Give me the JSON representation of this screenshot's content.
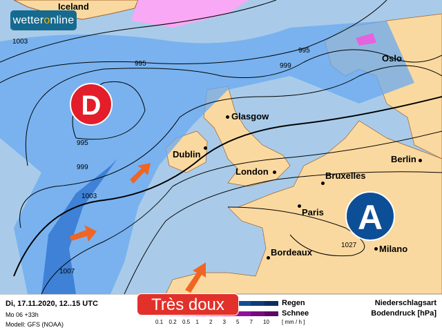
{
  "logo": {
    "text_a": "wetter",
    "text_b": "o",
    "text_c": "nline"
  },
  "map": {
    "cities": [
      {
        "name": "Iceland"
      },
      {
        "name": "Oslo"
      },
      {
        "name": "Glasgow"
      },
      {
        "name": "Dublin"
      },
      {
        "name": "London"
      },
      {
        "name": "Bruxelles"
      },
      {
        "name": "Berlin"
      },
      {
        "name": "Paris"
      },
      {
        "name": "Bordeaux"
      },
      {
        "name": "Milano"
      }
    ],
    "isobar_labels": [
      "1003",
      "995",
      "995",
      "999",
      "1003",
      "1007",
      "995",
      "999",
      "1027"
    ],
    "low_label": "D",
    "high_label": "A",
    "colors": {
      "sea": "#a9cbe9",
      "land": "#fad9a0",
      "rain": "#3f86e0",
      "snow": "#f8a8f4",
      "high": "#0d4f96",
      "low": "#e31e2a",
      "arrow": "#f06522"
    }
  },
  "footer": {
    "datetime": "Di, 17.11.2020, 12..15 UTC",
    "run": "Mo 06 +33h",
    "model": "Modell: GFS (NOAA)",
    "badge": "Très doux",
    "rain_label": "Regen",
    "snow_label": "Schnee",
    "unit": "[ mm / h ]",
    "ticks": [
      "0.1",
      "0.2",
      "0.5",
      "1",
      "2",
      "3",
      "5",
      "7",
      "10"
    ],
    "type_label": "Niederschlagsart",
    "pressure_label": "Bodendruck [hPa]",
    "rain_colors": [
      "#bcd8f3",
      "#92c2f0",
      "#6aaaf0",
      "#4a90e6",
      "#2f74d0",
      "#1d5fb5",
      "#124e96",
      "#0e3e78",
      "#0b3060"
    ],
    "snow_colors": [
      "#fbd3f8",
      "#f6b0f2",
      "#f08ae9",
      "#e463de",
      "#d03ed0",
      "#b322b8",
      "#93109c",
      "#770a80",
      "#5c0666"
    ]
  }
}
